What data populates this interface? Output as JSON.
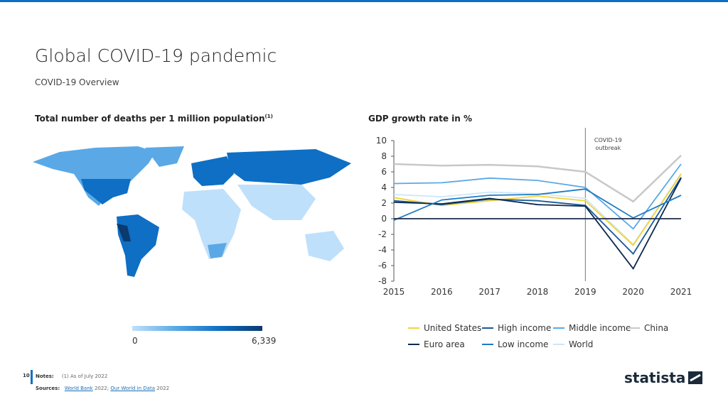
{
  "header": {
    "title": "Global COVID-19 pandemic",
    "subtitle": "COVID-19 Overview"
  },
  "map": {
    "title": "Total number of deaths per 1 million population",
    "title_note": "(1)",
    "scale_min": "0",
    "scale_max": "6,339",
    "colors": [
      "#bfe0fb",
      "#5aa9e6",
      "#0e6fc4",
      "#0b3a6e"
    ]
  },
  "chart_data": {
    "type": "line",
    "title": "GDP growth rate in %",
    "x": [
      "2015",
      "2016",
      "2017",
      "2018",
      "2019",
      "2020",
      "2021"
    ],
    "yticks": [
      "10",
      "8",
      "6",
      "4",
      "2",
      "0",
      "-2",
      "-4",
      "-6",
      "-8"
    ],
    "ylim": [
      -8,
      10
    ],
    "annotation": [
      "COVID-19",
      "outbreak"
    ],
    "annotation_x": "2019",
    "series": [
      {
        "name": "China",
        "color": "#c8c8c8",
        "values": [
          7.0,
          6.8,
          6.9,
          6.7,
          6.0,
          2.2,
          8.1
        ]
      },
      {
        "name": "Middle income",
        "color": "#5aa9e6",
        "values": [
          4.5,
          4.6,
          5.2,
          4.9,
          4.0,
          -1.3,
          7.0
        ]
      },
      {
        "name": "World",
        "color": "#cfe6f7",
        "values": [
          3.1,
          2.8,
          3.4,
          3.2,
          2.6,
          -3.3,
          5.8
        ]
      },
      {
        "name": "United States",
        "color": "#f2d43a",
        "values": [
          2.7,
          1.7,
          2.3,
          2.9,
          2.3,
          -3.4,
          5.7
        ]
      },
      {
        "name": "High income",
        "color": "#1a5a9a",
        "values": [
          2.3,
          1.8,
          2.5,
          2.3,
          1.7,
          -4.5,
          5.3
        ]
      },
      {
        "name": "Euro area",
        "color": "#0b2a4e",
        "values": [
          2.1,
          1.9,
          2.6,
          1.8,
          1.6,
          -6.4,
          5.2
        ]
      },
      {
        "name": "Low income",
        "color": "#1e7bc4",
        "values": [
          -0.2,
          2.4,
          3.0,
          3.1,
          3.8,
          0.1,
          3.0
        ]
      }
    ]
  },
  "legend": [
    "United States",
    "High income",
    "Middle income",
    "China",
    "Euro area",
    "Low income",
    "World"
  ],
  "footer": {
    "page": "10",
    "notes_label": "Notes:",
    "notes": "(1) As of July 2022",
    "sources_label": "Sources:",
    "source1": "World Bank",
    "year1": " 2022; ",
    "source2": "Our World in Data",
    "year2": " 2022",
    "logo": "statista"
  }
}
